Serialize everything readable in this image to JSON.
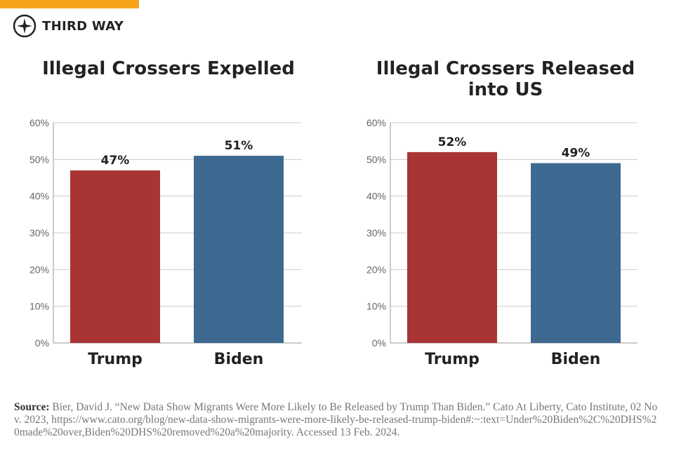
{
  "brand": {
    "name": "THIRD WAY",
    "accent": "#f7a21b"
  },
  "colors": {
    "Trump": "#a93434",
    "Biden": "#3e6a91"
  },
  "chart_data": [
    {
      "type": "bar",
      "title": "Illegal Crossers Expelled",
      "categories": [
        "Trump",
        "Biden"
      ],
      "values": [
        47,
        51
      ],
      "data_labels": [
        "47%",
        "51%"
      ],
      "ylim": [
        0,
        60
      ],
      "yticks": [
        "0%",
        "10%",
        "20%",
        "30%",
        "40%",
        "50%",
        "60%"
      ],
      "grid": true
    },
    {
      "type": "bar",
      "title": "Illegal Crossers Released into US",
      "title_lines": [
        "Illegal Crossers Released",
        "into US"
      ],
      "categories": [
        "Trump",
        "Biden"
      ],
      "values": [
        52,
        49
      ],
      "data_labels": [
        "52%",
        "49%"
      ],
      "ylim": [
        0,
        60
      ],
      "yticks": [
        "0%",
        "10%",
        "20%",
        "30%",
        "40%",
        "50%",
        "60%"
      ],
      "grid": true
    }
  ],
  "source": {
    "label": "Source:",
    "text": "Bier, David J. “New Data Show Migrants Were More Likely to Be Released by Trump Than Biden.” Cato At Liberty, Cato Institute, 02 Nov. 2023, https://www.cato.org/blog/new-data-show-migrants-were-more-likely-be-released-trump-biden#:~:text=Under%20Biden%2C%20DHS%20made%20over,Biden%20DHS%20removed%20a%20majority. Accessed 13 Feb. 2024."
  }
}
